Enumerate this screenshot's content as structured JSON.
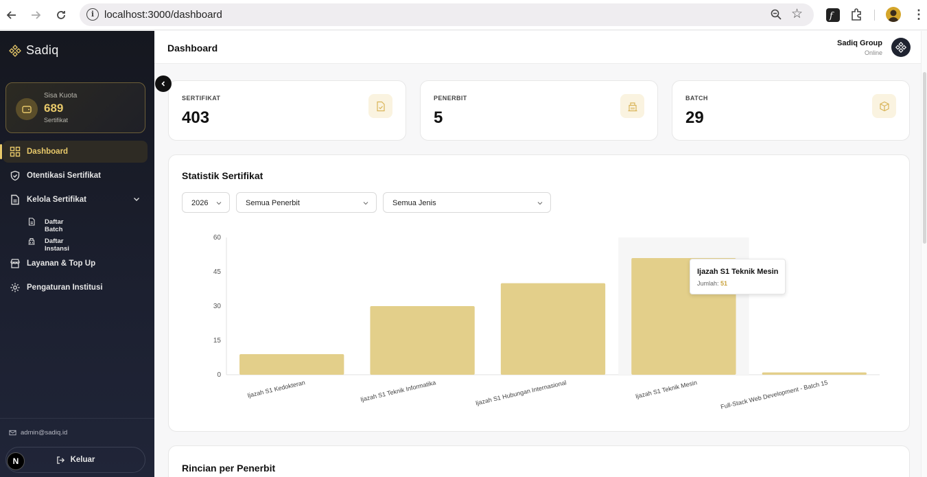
{
  "browser": {
    "url": "localhost:3000/dashboard",
    "icons": [
      "back-icon",
      "forward-icon",
      "reload-icon",
      "info-icon",
      "zoom-icon",
      "star-icon",
      "extension-icon",
      "profile-avatar",
      "kebab-icon"
    ]
  },
  "sidebar": {
    "brand": "Sadiq",
    "quota": {
      "label": "Sisa Kuota",
      "value": "689",
      "sub": "Sertifikat"
    },
    "items": [
      {
        "label": "Dashboard",
        "icon": "grid-icon",
        "active": true
      },
      {
        "label": "Otentikasi Sertifikat",
        "icon": "shield-check-icon"
      },
      {
        "label": "Kelola Sertifikat",
        "icon": "document-icon",
        "expanded": true
      },
      {
        "label": "Layanan & Top Up",
        "icon": "store-icon"
      },
      {
        "label": "Pengaturan Institusi",
        "icon": "gear-icon"
      }
    ],
    "subitems": [
      {
        "label": "Daftar Batch",
        "icon": "document-icon"
      },
      {
        "label": "Daftar Instansi",
        "icon": "building-icon"
      }
    ],
    "email": "admin@sadiq.id",
    "logout": "Keluar",
    "badge": "N"
  },
  "header": {
    "title": "Dashboard",
    "user_name": "Sadiq Group",
    "user_status": "Online"
  },
  "stats": [
    {
      "label": "SERTIFIKAT",
      "value": "403",
      "icon": "file-check-icon"
    },
    {
      "label": "PENERBIT",
      "value": "5",
      "icon": "building-icon"
    },
    {
      "label": "BATCH",
      "value": "29",
      "icon": "box-icon"
    }
  ],
  "chart_section": {
    "title": "Statistik Sertifikat",
    "filters": {
      "year": "2026",
      "publisher": "Semua Penerbit",
      "type": "Semua Jenis"
    },
    "tooltip": {
      "title": "Ijazah S1 Teknik Mesin",
      "label": "Jumlah:",
      "value": "51"
    }
  },
  "chart_data": {
    "type": "bar",
    "categories": [
      "Ijazah S1 Kedokteran",
      "Ijazah S1 Teknik Informatika",
      "Ijazah S1 Hubungan Internasional",
      "Ijazah S1 Teknik Mesin",
      "Full-Stack Web Development - Batch 15"
    ],
    "values": [
      9,
      30,
      40,
      51,
      1
    ],
    "yticks": [
      0,
      15,
      30,
      45,
      60
    ],
    "ylim": [
      0,
      60
    ],
    "highlighted_index": 3,
    "bar_color": "#e3cf8a",
    "grid": false
  },
  "detail_section": {
    "title": "Rincian per Penerbit"
  }
}
